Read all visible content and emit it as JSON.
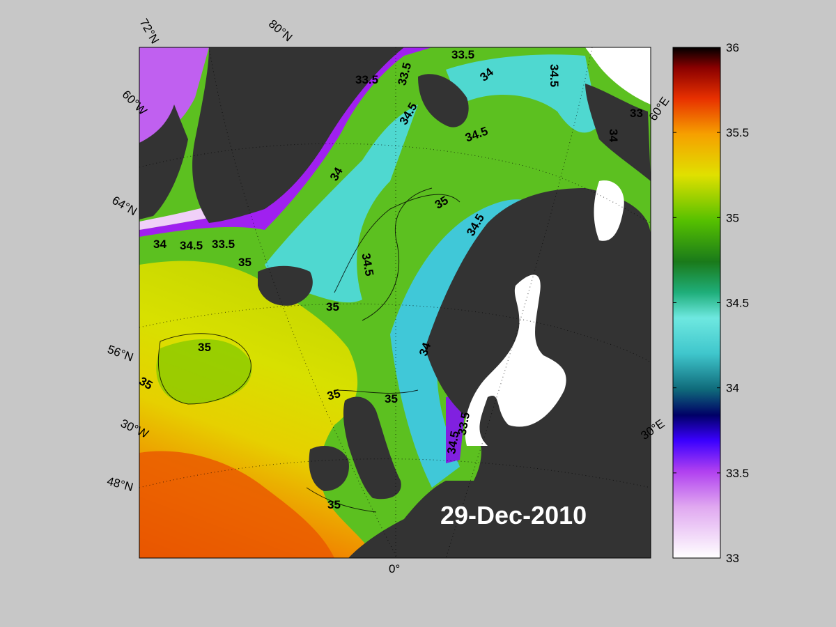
{
  "map": {
    "date_label": "29-Dec-2010",
    "graticule_labels": [
      {
        "id": "lat72",
        "text": "72°N"
      },
      {
        "id": "lat80",
        "text": "80°N"
      },
      {
        "id": "lon60w",
        "text": "60°W"
      },
      {
        "id": "lat64",
        "text": "64°N"
      },
      {
        "id": "lat56",
        "text": "56°N"
      },
      {
        "id": "lon30w",
        "text": "30°W"
      },
      {
        "id": "lat48",
        "text": "48°N"
      },
      {
        "id": "lon0",
        "text": "0°"
      },
      {
        "id": "lon30e",
        "text": "30°E"
      },
      {
        "id": "lon60e",
        "text": "60°E"
      }
    ],
    "contour_labels": [
      {
        "id": "c1",
        "text": "33.5"
      },
      {
        "id": "c2",
        "text": "33.5"
      },
      {
        "id": "c3",
        "text": "33.5"
      },
      {
        "id": "c4",
        "text": "34"
      },
      {
        "id": "c5",
        "text": "34.5"
      },
      {
        "id": "c6",
        "text": "34.5"
      },
      {
        "id": "c7",
        "text": "34.5"
      },
      {
        "id": "c8",
        "text": "33"
      },
      {
        "id": "c9",
        "text": "34"
      },
      {
        "id": "c10",
        "text": "34"
      },
      {
        "id": "c11",
        "text": "35"
      },
      {
        "id": "c12",
        "text": "34.5"
      },
      {
        "id": "c13",
        "text": "34"
      },
      {
        "id": "c14",
        "text": "34.5"
      },
      {
        "id": "c15",
        "text": "33.5"
      },
      {
        "id": "c16",
        "text": "35"
      },
      {
        "id": "c17",
        "text": "34.5"
      },
      {
        "id": "c18",
        "text": "35"
      },
      {
        "id": "c19",
        "text": "35"
      },
      {
        "id": "c20",
        "text": "35"
      },
      {
        "id": "c21",
        "text": "34"
      },
      {
        "id": "c22",
        "text": "35"
      },
      {
        "id": "c23",
        "text": "35"
      },
      {
        "id": "c24",
        "text": "34.5"
      },
      {
        "id": "c25",
        "text": "33.5"
      },
      {
        "id": "c26",
        "text": "35"
      }
    ]
  },
  "colorbar": {
    "min": 33,
    "max": 36,
    "ticks": [
      "36",
      "35.5",
      "35",
      "34.5",
      "34",
      "33.5",
      "33"
    ]
  },
  "colors": {
    "land": "#333333",
    "ice": "#ffffff",
    "background": "#c7c7c7"
  }
}
